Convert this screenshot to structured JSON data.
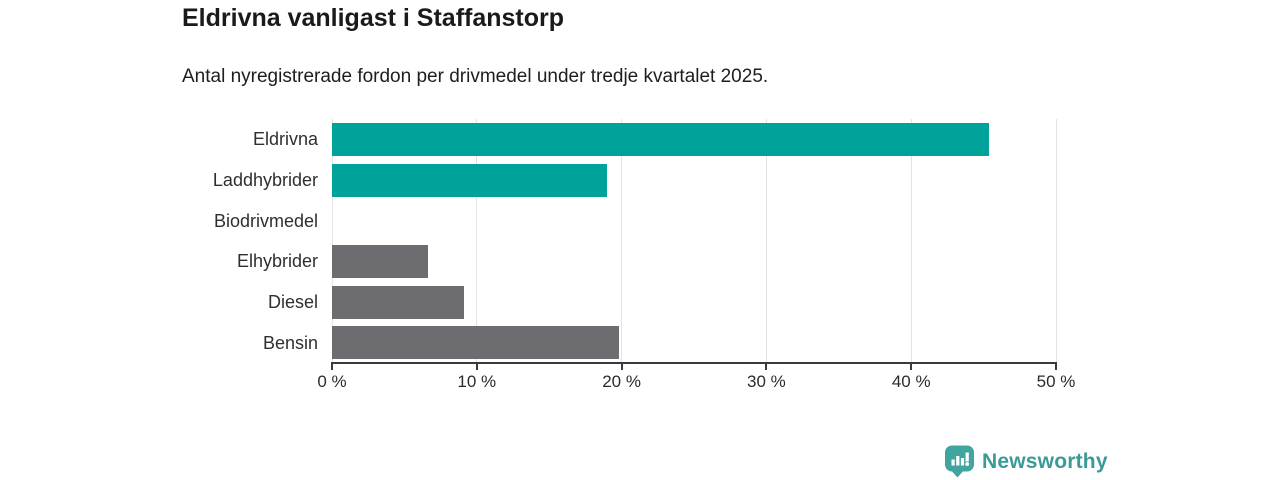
{
  "header": {
    "title": "Eldrivna vanligast i Staffanstorp",
    "subtitle": "Antal nyregistrerade fordon per drivmedel under tredje kvartalet 2025."
  },
  "chart_data": {
    "type": "bar",
    "orientation": "horizontal",
    "title": "Eldrivna vanligast i Staffanstorp",
    "subtitle": "Antal nyregistrerade fordon per drivmedel under tredje kvartalet 2025.",
    "categories": [
      "Eldrivna",
      "Laddhybrider",
      "Biodrivmedel",
      "Elhybrider",
      "Diesel",
      "Bensin"
    ],
    "values": [
      45.4,
      19.0,
      0,
      6.6,
      9.1,
      19.8
    ],
    "unit": "%",
    "xlabel": "",
    "ylabel": "",
    "xlim": [
      0,
      50
    ],
    "x_ticks": [
      {
        "value": 0,
        "label": "0 %"
      },
      {
        "value": 10,
        "label": "10 %"
      },
      {
        "value": 20,
        "label": "20 %"
      },
      {
        "value": 30,
        "label": "30 %"
      },
      {
        "value": 40,
        "label": "40 %"
      },
      {
        "value": 50,
        "label": "50 %"
      }
    ],
    "grid": true,
    "legend": "none",
    "bar_colors": [
      "#00a29a",
      "#00a29a",
      "#6c6c71",
      "#6c6c71",
      "#6c6c71",
      "#6c6c71"
    ],
    "highlight_color": "#00a29a",
    "default_color": "#6c6c71"
  },
  "branding": {
    "logo_text": "Newsworthy",
    "logo_text_color": "#3a9a96",
    "badge_color": "#41a59f",
    "icon": "bar-chart-speech-bubble-icon"
  }
}
